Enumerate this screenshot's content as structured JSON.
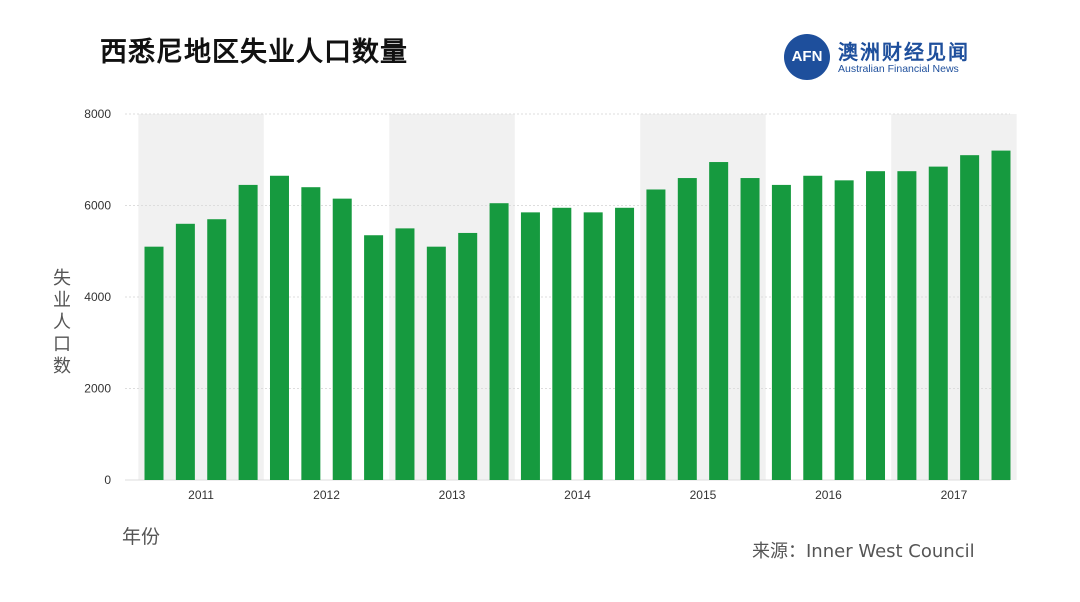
{
  "title": "西悉尼地区失业人口数量",
  "logo": {
    "mark": "AFN",
    "name_cn": "澳洲财经见闻",
    "name_en": "Australian Financial News"
  },
  "source": "来源：Inner West Council",
  "colors": {
    "bar": "#169a3f",
    "grid": "#dddddd",
    "band": "#f1f1f1",
    "logo": "#1e4f9c"
  },
  "chart_data": {
    "type": "bar",
    "ylabel": "失业人口数",
    "xlabel": "年份",
    "ylim": [
      0,
      8000
    ],
    "yticks": [
      0,
      2000,
      4000,
      6000,
      8000
    ],
    "grid": true,
    "year_labels": [
      "2011",
      "2012",
      "2013",
      "2014",
      "2015",
      "2016",
      "2017"
    ],
    "values": [
      5100,
      5600,
      5700,
      6450,
      6650,
      6400,
      6150,
      5350,
      5500,
      5100,
      5400,
      6050,
      5850,
      5950,
      5850,
      5950,
      6350,
      6600,
      6950,
      6600,
      6450,
      6650,
      6550,
      6750,
      6750,
      6850,
      7100,
      7200
    ]
  }
}
